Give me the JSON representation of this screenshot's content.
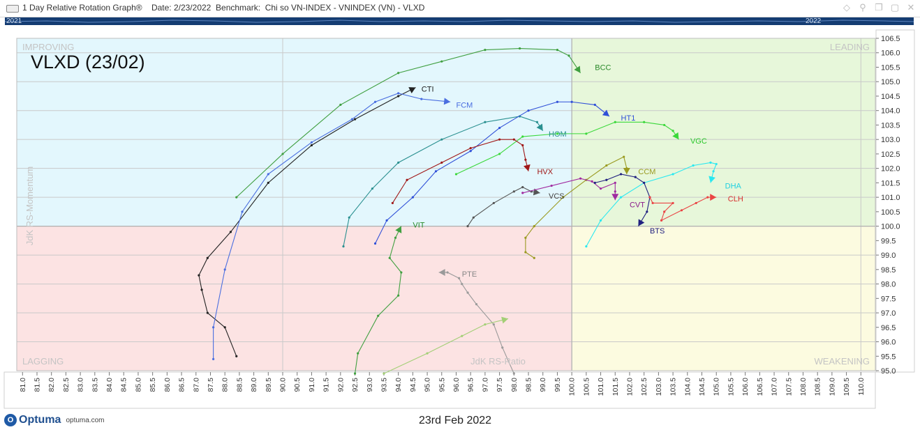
{
  "window": {
    "title": "1 Day Relative Rotation Graph®",
    "date_label": "Date: 2/23/2022",
    "benchmark_label": "Benchmark:  Chi so VN-INDEX - VNINDEX (VN) - VLXD",
    "icons": [
      "pin-icon",
      "diamond-icon",
      "copy-icon",
      "restore-icon",
      "close-icon"
    ]
  },
  "timeline": {
    "start_year": "2021",
    "end_year": "2022"
  },
  "footer": {
    "brand": "Optuma",
    "site": "optuma.com",
    "date": "23rd Feb 2022"
  },
  "colors": {
    "improving": "#e3f7fd",
    "leading": "#e7f7da",
    "weakening": "#fcfbe0",
    "lagging": "#fce3e3",
    "grid": "#c9c9c9"
  },
  "chart_data": {
    "type": "scatter",
    "title": "VLXD (23/02)",
    "xlabel": "JdK RS-Ratio",
    "ylabel": "JdK RS-Momentum",
    "xlim": [
      80.8,
      110.5
    ],
    "ylim": [
      95.0,
      106.5
    ],
    "x_ticks": [
      "81.0",
      "81.5",
      "82.0",
      "82.5",
      "83.0",
      "83.5",
      "84.0",
      "84.5",
      "85.0",
      "85.5",
      "86.0",
      "86.5",
      "87.0",
      "87.5",
      "88.0",
      "88.5",
      "89.0",
      "89.5",
      "90.0",
      "90.5",
      "91.0",
      "91.5",
      "92.0",
      "92.5",
      "93.0",
      "93.5",
      "94.0",
      "94.5",
      "95.0",
      "95.5",
      "96.0",
      "96.5",
      "97.0",
      "97.5",
      "98.0",
      "98.5",
      "99.0",
      "99.5",
      "100.0",
      "100.5",
      "101.0",
      "101.5",
      "102.0",
      "102.5",
      "103.0",
      "103.5",
      "104.0",
      "104.5",
      "105.0",
      "105.5",
      "106.0",
      "106.5",
      "107.0",
      "107.5",
      "108.0",
      "108.5",
      "109.0",
      "109.5",
      "110.0"
    ],
    "y_ticks": [
      "95.0",
      "95.5",
      "96.0",
      "96.5",
      "97.0",
      "97.5",
      "98.0",
      "98.5",
      "99.0",
      "99.5",
      "100.0",
      "100.5",
      "101.0",
      "101.5",
      "102.0",
      "102.5",
      "103.0",
      "103.5",
      "104.0",
      "104.5",
      "105.0",
      "105.5",
      "106.0",
      "106.5"
    ],
    "quadrants": {
      "top_left": "IMPROVING",
      "top_right": "LEADING",
      "bottom_left": "LAGGING",
      "bottom_right": "WEAKENING"
    },
    "series": [
      {
        "name": "BCC",
        "color": "#3f9f3f",
        "points": [
          [
            88.4,
            101.0
          ],
          [
            90.0,
            102.5
          ],
          [
            92.0,
            104.2
          ],
          [
            94.0,
            105.3
          ],
          [
            95.5,
            105.7
          ],
          [
            97.0,
            106.1
          ],
          [
            98.2,
            106.15
          ],
          [
            99.5,
            106.1
          ],
          [
            99.9,
            105.9
          ],
          [
            100.3,
            105.3
          ]
        ]
      },
      {
        "name": "CTI",
        "color": "#222222",
        "points": [
          [
            88.4,
            95.5
          ],
          [
            88.0,
            96.5
          ],
          [
            87.4,
            97.0
          ],
          [
            87.2,
            97.8
          ],
          [
            87.1,
            98.3
          ],
          [
            87.4,
            98.9
          ],
          [
            88.2,
            99.8
          ],
          [
            89.5,
            101.5
          ],
          [
            91.0,
            102.8
          ],
          [
            92.5,
            103.7
          ],
          [
            94.0,
            104.5
          ],
          [
            94.6,
            104.8
          ]
        ]
      },
      {
        "name": "FCM",
        "color": "#4a6ee0",
        "points": [
          [
            87.6,
            95.4
          ],
          [
            87.6,
            96.5
          ],
          [
            88.0,
            98.5
          ],
          [
            88.6,
            100.5
          ],
          [
            89.5,
            101.8
          ],
          [
            91.0,
            102.9
          ],
          [
            92.4,
            103.7
          ],
          [
            93.2,
            104.3
          ],
          [
            94.0,
            104.6
          ],
          [
            94.8,
            104.4
          ],
          [
            95.8,
            104.3
          ]
        ]
      },
      {
        "name": "HOM",
        "color": "#2a9090",
        "points": [
          [
            92.1,
            99.3
          ],
          [
            92.3,
            100.3
          ],
          [
            93.1,
            101.3
          ],
          [
            94.0,
            102.2
          ],
          [
            95.5,
            103.0
          ],
          [
            97.0,
            103.6
          ],
          [
            98.2,
            103.8
          ],
          [
            98.8,
            103.6
          ],
          [
            99.0,
            103.3
          ]
        ]
      },
      {
        "name": "HT1",
        "color": "#3050d8",
        "points": [
          [
            93.2,
            99.4
          ],
          [
            93.6,
            100.2
          ],
          [
            94.5,
            101.0
          ],
          [
            95.3,
            101.9
          ],
          [
            96.5,
            102.6
          ],
          [
            97.5,
            103.4
          ],
          [
            98.5,
            104.0
          ],
          [
            99.5,
            104.3
          ],
          [
            100.0,
            104.3
          ],
          [
            100.8,
            104.2
          ],
          [
            101.3,
            103.8
          ]
        ]
      },
      {
        "name": "VGC",
        "color": "#3ad83a",
        "points": [
          [
            96.0,
            101.8
          ],
          [
            97.5,
            102.5
          ],
          [
            98.3,
            103.1
          ],
          [
            99.5,
            103.2
          ],
          [
            100.5,
            103.2
          ],
          [
            101.5,
            103.6
          ],
          [
            102.5,
            103.6
          ],
          [
            103.2,
            103.5
          ],
          [
            103.5,
            103.3
          ],
          [
            103.7,
            103.0
          ]
        ]
      },
      {
        "name": "HVX",
        "color": "#a01818",
        "points": [
          [
            93.8,
            100.8
          ],
          [
            94.3,
            101.6
          ],
          [
            95.5,
            102.2
          ],
          [
            96.5,
            102.7
          ],
          [
            97.5,
            103.0
          ],
          [
            98.0,
            103.0
          ],
          [
            98.3,
            102.8
          ],
          [
            98.4,
            102.3
          ],
          [
            98.5,
            101.9
          ]
        ]
      },
      {
        "name": "VCS",
        "color": "#555555",
        "points": [
          [
            96.4,
            100.0
          ],
          [
            96.6,
            100.3
          ],
          [
            97.3,
            100.8
          ],
          [
            98.0,
            101.2
          ],
          [
            98.3,
            101.35
          ],
          [
            98.6,
            101.2
          ],
          [
            98.9,
            101.15
          ]
        ]
      },
      {
        "name": "CCM",
        "color": "#9a9a20",
        "points": [
          [
            98.7,
            98.9
          ],
          [
            98.4,
            99.1
          ],
          [
            98.4,
            99.6
          ],
          [
            98.7,
            100.0
          ],
          [
            99.7,
            101.0
          ],
          [
            100.5,
            101.6
          ],
          [
            101.2,
            102.1
          ],
          [
            101.8,
            102.4
          ],
          [
            101.9,
            102.0
          ],
          [
            101.9,
            101.8
          ]
        ]
      },
      {
        "name": "CVT",
        "color": "#a02aa0",
        "points": [
          [
            98.3,
            101.15
          ],
          [
            99.3,
            101.4
          ],
          [
            100.3,
            101.65
          ],
          [
            100.7,
            101.55
          ],
          [
            101.0,
            101.3
          ],
          [
            101.5,
            101.5
          ],
          [
            101.5,
            101.2
          ],
          [
            101.5,
            100.9
          ]
        ]
      },
      {
        "name": "DHA",
        "color": "#2ae8f0",
        "points": [
          [
            100.5,
            99.3
          ],
          [
            101.0,
            100.2
          ],
          [
            101.7,
            101.0
          ],
          [
            102.5,
            101.5
          ],
          [
            103.5,
            101.8
          ],
          [
            104.2,
            102.1
          ],
          [
            104.8,
            102.2
          ],
          [
            105.0,
            102.15
          ],
          [
            104.9,
            101.9
          ],
          [
            104.8,
            101.5
          ]
        ]
      },
      {
        "name": "BTS",
        "color": "#202080",
        "points": [
          [
            100.8,
            101.5
          ],
          [
            101.2,
            101.6
          ],
          [
            101.7,
            101.8
          ],
          [
            102.2,
            101.7
          ],
          [
            102.5,
            101.5
          ],
          [
            102.7,
            101.0
          ],
          [
            102.6,
            100.5
          ],
          [
            102.3,
            100.0
          ]
        ]
      },
      {
        "name": "CLH",
        "color": "#ea4444",
        "points": [
          [
            102.7,
            101.0
          ],
          [
            102.8,
            100.8
          ],
          [
            103.5,
            100.8
          ],
          [
            103.2,
            100.5
          ],
          [
            103.1,
            100.2
          ],
          [
            103.8,
            100.55
          ],
          [
            104.3,
            100.8
          ],
          [
            104.7,
            101.0
          ],
          [
            105.0,
            101.0
          ]
        ]
      },
      {
        "name": "VIT",
        "color": "#40a040",
        "points": [
          [
            92.5,
            94.9
          ],
          [
            92.6,
            95.6
          ],
          [
            93.3,
            96.9
          ],
          [
            94.0,
            97.6
          ],
          [
            94.1,
            98.4
          ],
          [
            93.7,
            98.9
          ],
          [
            93.9,
            99.6
          ],
          [
            94.1,
            100.0
          ]
        ]
      },
      {
        "name": "PTE",
        "color": "#9a9a9a",
        "points": [
          [
            98.0,
            94.9
          ],
          [
            97.6,
            95.8
          ],
          [
            97.3,
            96.6
          ],
          [
            96.7,
            97.3
          ],
          [
            96.4,
            97.7
          ],
          [
            96.2,
            98.0
          ],
          [
            96.1,
            98.2
          ],
          [
            95.7,
            98.4
          ],
          [
            95.4,
            98.4
          ]
        ]
      },
      {
        "name": "",
        "color": "#a3cf76",
        "points": [
          [
            93.5,
            94.9
          ],
          [
            95.0,
            95.6
          ],
          [
            96.2,
            96.2
          ],
          [
            97.0,
            96.6
          ],
          [
            97.8,
            96.8
          ]
        ]
      }
    ],
    "labels": [
      {
        "text": "BCC",
        "x": 100.8,
        "y": 105.5,
        "color": "#2a8a2a"
      },
      {
        "text": "CTI",
        "x": 94.8,
        "y": 104.75,
        "color": "#222222"
      },
      {
        "text": "FCM",
        "x": 96.0,
        "y": 104.2,
        "color": "#4a6ee0"
      },
      {
        "text": "HT1",
        "x": 101.7,
        "y": 103.75,
        "color": "#3050d8"
      },
      {
        "text": "HOM",
        "x": 99.2,
        "y": 103.2,
        "color": "#2a9090"
      },
      {
        "text": "VGC",
        "x": 104.1,
        "y": 102.95,
        "color": "#2ac82a"
      },
      {
        "text": "HVX",
        "x": 98.8,
        "y": 101.9,
        "color": "#a01818"
      },
      {
        "text": "CCM",
        "x": 102.3,
        "y": 101.9,
        "color": "#9a9a20"
      },
      {
        "text": "DHA",
        "x": 105.3,
        "y": 101.4,
        "color": "#1ed0e0"
      },
      {
        "text": "VCS",
        "x": 99.2,
        "y": 101.05,
        "color": "#444444"
      },
      {
        "text": "CLH",
        "x": 105.4,
        "y": 100.95,
        "color": "#d83030"
      },
      {
        "text": "CVT",
        "x": 102.0,
        "y": 100.75,
        "color": "#8a1a8a"
      },
      {
        "text": "BTS",
        "x": 102.7,
        "y": 99.85,
        "color": "#202080"
      },
      {
        "text": "VIT",
        "x": 94.5,
        "y": 100.05,
        "color": "#2a8a2a"
      },
      {
        "text": "PTE",
        "x": 96.2,
        "y": 98.35,
        "color": "#888888"
      }
    ]
  }
}
